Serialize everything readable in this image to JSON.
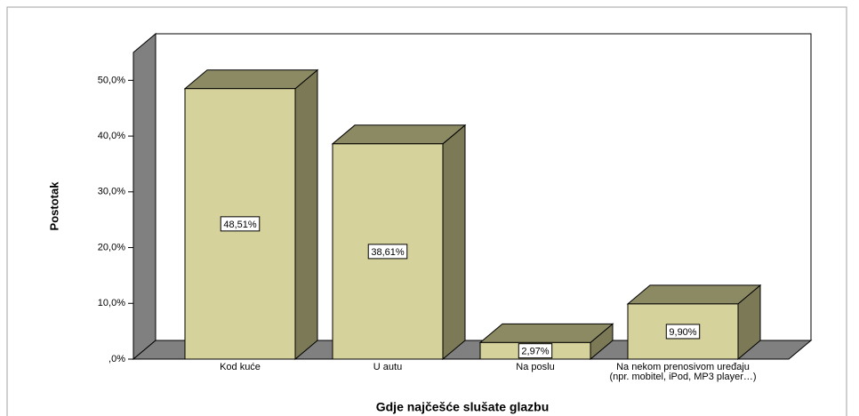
{
  "chart_data": {
    "type": "bar3d",
    "x_label": "Gdje najčešće slušate glazbu",
    "y_label": "Postotak",
    "categories": [
      "Kod kuće",
      "U autu",
      "Na poslu",
      "Na nekom prenosivom uređaju (npr. mobitel, iPod, MP3 player…)"
    ],
    "values": [
      48.51,
      38.61,
      2.97,
      9.9
    ],
    "value_labels": [
      "48,51%",
      "38,61%",
      "2,97%",
      "9,90%"
    ],
    "color": "#d6d29c",
    "ylim": [
      0,
      55
    ],
    "yticks": [
      {
        "value": 0,
        "label": ",0%"
      },
      {
        "value": 10,
        "label": "10,0%"
      },
      {
        "value": 20,
        "label": "20,0%"
      },
      {
        "value": 30,
        "label": "30,0%"
      },
      {
        "value": 40,
        "label": "40,0%"
      },
      {
        "value": 50,
        "label": "50,0%"
      }
    ],
    "grid": false
  }
}
